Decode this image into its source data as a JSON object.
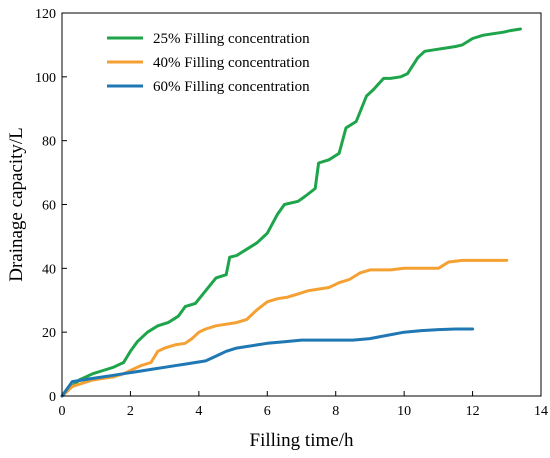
{
  "chart_data": {
    "type": "line",
    "title": "",
    "xlabel": "Filling time/h",
    "ylabel": "Drainage capacity/L",
    "xlim": [
      0,
      14
    ],
    "ylim": [
      0,
      120
    ],
    "xticks": [
      "0",
      "2",
      "4",
      "6",
      "8",
      "10",
      "12",
      "14"
    ],
    "yticks": [
      "0",
      "20",
      "40",
      "60",
      "80",
      "100",
      "120"
    ],
    "grid": false,
    "legend_position": "top-left",
    "series": [
      {
        "name": "25% Filling concentration",
        "color": "#1ea44a",
        "x": [
          0,
          0.3,
          0.5,
          0.7,
          0.9,
          1.2,
          1.5,
          1.8,
          2.0,
          2.2,
          2.5,
          2.8,
          3.1,
          3.4,
          3.6,
          3.9,
          4.2,
          4.5,
          4.8,
          4.9,
          5.1,
          5.4,
          5.7,
          5.9,
          6.0,
          6.3,
          6.5,
          6.9,
          7.1,
          7.4,
          7.5,
          7.8,
          8.1,
          8.3,
          8.6,
          8.9,
          9.1,
          9.4,
          9.6,
          9.9,
          10.1,
          10.4,
          10.6,
          10.9,
          11.2,
          11.5,
          11.7,
          12.0,
          12.3,
          12.6,
          12.9,
          13.1,
          13.4
        ],
        "y": [
          0,
          3,
          5,
          6,
          7,
          8,
          9,
          10.5,
          14,
          17,
          20,
          22,
          23,
          25,
          28,
          29,
          33,
          37,
          38,
          43.5,
          44,
          46,
          48,
          50,
          51,
          57,
          60,
          61,
          62.5,
          65,
          73,
          74,
          76,
          84,
          86,
          94,
          96,
          99.5,
          99.5,
          100,
          101,
          106,
          108,
          108.5,
          109,
          109.5,
          110,
          112,
          113,
          113.5,
          114,
          114.5,
          115
        ]
      },
      {
        "name": "40% Filling concentration",
        "color": "#f5a033",
        "x": [
          0,
          0.3,
          0.6,
          0.9,
          1.2,
          1.5,
          1.8,
          2.0,
          2.3,
          2.6,
          2.8,
          3.0,
          3.3,
          3.6,
          3.8,
          4.0,
          4.2,
          4.5,
          4.8,
          5.1,
          5.4,
          5.7,
          6.0,
          6.3,
          6.6,
          6.9,
          7.2,
          7.5,
          7.8,
          8.1,
          8.4,
          8.7,
          9.0,
          9.3,
          9.6,
          10.0,
          10.3,
          10.7,
          11.0,
          11.3,
          11.7,
          12.0,
          12.5,
          13.0
        ],
        "y": [
          0,
          3,
          4,
          5,
          5.5,
          6,
          7,
          8,
          9.5,
          10.5,
          14,
          15,
          16,
          16.5,
          18,
          20,
          21,
          22,
          22.5,
          23,
          24,
          27,
          29.5,
          30.5,
          31,
          32,
          33,
          33.5,
          34,
          35.5,
          36.5,
          38.5,
          39.5,
          39.5,
          39.5,
          40,
          40,
          40,
          40,
          42,
          42.5,
          42.5,
          42.5,
          42.5
        ]
      },
      {
        "name": "60% Filling concentration",
        "color": "#1f78b4",
        "x": [
          0,
          0.3,
          0.6,
          0.9,
          1.2,
          1.5,
          1.8,
          2.1,
          2.4,
          2.7,
          3.0,
          3.3,
          3.6,
          3.9,
          4.2,
          4.5,
          4.8,
          5.1,
          5.4,
          5.7,
          6.0,
          6.5,
          7.0,
          7.5,
          8.0,
          8.5,
          9.0,
          9.5,
          10.0,
          10.5,
          11.0,
          11.5,
          12.0
        ],
        "y": [
          0,
          4.5,
          5,
          5.5,
          6,
          6.5,
          7,
          7.5,
          8,
          8.5,
          9,
          9.5,
          10,
          10.5,
          11,
          12.5,
          14,
          15,
          15.5,
          16,
          16.5,
          17,
          17.5,
          17.5,
          17.5,
          17.5,
          18,
          19,
          20,
          20.5,
          20.8,
          21,
          21
        ]
      }
    ]
  }
}
